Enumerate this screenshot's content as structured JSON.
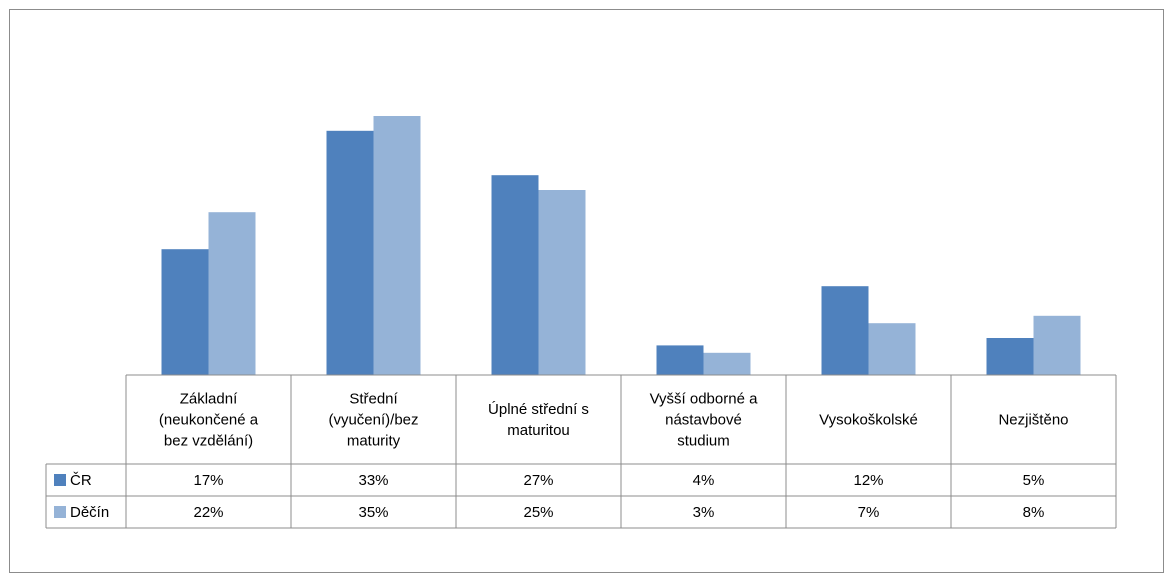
{
  "chart_data": {
    "type": "bar",
    "categories": [
      [
        "Základní",
        "(neukončené a",
        "bez vzdělání)"
      ],
      [
        "Střední",
        "(vyučení)/bez",
        "maturity"
      ],
      [
        "Úplné střední s",
        "maturitou"
      ],
      [
        "Vyšší odborné a",
        "nástavbové",
        "studium"
      ],
      [
        "Vysokoškolské"
      ],
      [
        "Nezjištěno"
      ]
    ],
    "series": [
      {
        "name": "ČR",
        "values": [
          17,
          33,
          27,
          4,
          12,
          5
        ],
        "labels": [
          "17%",
          "33%",
          "27%",
          "4%",
          "12%",
          "5%"
        ],
        "color": "#4f81bd"
      },
      {
        "name": "Děčín",
        "values": [
          22,
          35,
          25,
          3,
          7,
          8
        ],
        "labels": [
          "22%",
          "35%",
          "25%",
          "3%",
          "7%",
          "8%"
        ],
        "color": "#95b3d7"
      }
    ],
    "ylim": [
      0,
      35
    ],
    "legend": "data-table",
    "grid": false
  }
}
